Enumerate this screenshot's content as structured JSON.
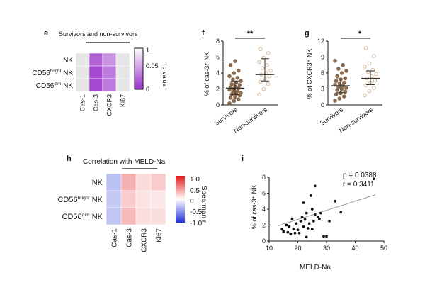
{
  "panel_labels": {
    "e": "e",
    "f": "f",
    "g": "g",
    "h": "h",
    "i": "i"
  },
  "chart_data": [
    {
      "id": "e",
      "type": "heatmap",
      "title": "Survivors and non-survivors",
      "rows": [
        "NK",
        "CD56bright NK",
        "CD56dim NK"
      ],
      "row_labels": [
        {
          "base": "NK",
          "sup": "",
          "tail": ""
        },
        {
          "base": "CD56",
          "sup": "bright",
          "tail": " NK"
        },
        {
          "base": "CD56",
          "sup": "dim",
          "tail": " NK"
        }
      ],
      "columns": [
        "Cas-1",
        "Cas-3",
        "CXCR3",
        "Ki67"
      ],
      "values": [
        [
          1.0,
          0.02,
          0.04,
          1.0
        ],
        [
          1.0,
          0.01,
          0.03,
          1.0
        ],
        [
          1.0,
          0.01,
          0.03,
          1.0
        ]
      ],
      "colorbar": {
        "label": "p value",
        "ticks": [
          "1",
          "0.05",
          "0"
        ],
        "range": [
          0,
          1
        ],
        "low_color": "#9a2fc8",
        "high_color": "#ffffff"
      },
      "significance_bracket": "Cas-1 to CXCR3"
    },
    {
      "id": "f",
      "type": "scatter",
      "ylabel": "% of cas-3⁺ NK",
      "categories": [
        "Survivors",
        "Non-survivors"
      ],
      "ylim": [
        0,
        8
      ],
      "yticks": [
        "0",
        "2",
        "4",
        "6",
        "8"
      ],
      "significance": "**",
      "series": [
        {
          "name": "Survivors",
          "values": [
            0.2,
            0.5,
            0.7,
            0.9,
            1.0,
            1.2,
            1.3,
            1.4,
            1.5,
            1.6,
            1.7,
            1.9,
            2.0,
            2.1,
            2.2,
            2.3,
            2.5,
            2.6,
            2.8,
            3.0,
            3.2,
            3.4,
            3.6,
            4.0,
            4.3,
            5.0,
            5.5
          ],
          "median": 2.1,
          "iqr": [
            1.3,
            3.0
          ],
          "color": "#8b6a4e"
        },
        {
          "name": "Non-survivors",
          "values": [
            1.3,
            2.0,
            2.6,
            2.9,
            3.3,
            3.6,
            3.8,
            4.0,
            4.3,
            4.6,
            5.0,
            5.4,
            5.9,
            6.5,
            7.0
          ],
          "median": 3.8,
          "iqr": [
            3.0,
            5.8
          ],
          "color": "#d9b99a"
        }
      ]
    },
    {
      "id": "g",
      "type": "scatter",
      "ylabel": "% of CXCR3⁺ NK",
      "categories": [
        "Survivors",
        "Non-survivors"
      ],
      "ylim": [
        0,
        12
      ],
      "yticks": [
        "0",
        "3",
        "6",
        "9",
        "12"
      ],
      "significance": "*",
      "series": [
        {
          "name": "Survivors",
          "values": [
            0.8,
            1.2,
            1.6,
            2.0,
            2.2,
            2.5,
            2.8,
            3.0,
            3.2,
            3.4,
            3.6,
            3.8,
            4.0,
            4.2,
            4.5,
            4.8,
            5.0,
            5.4,
            6.0,
            6.4,
            6.8,
            7.5,
            8.3
          ],
          "median": 3.6,
          "iqr": [
            2.3,
            4.9
          ],
          "color": "#8b6a4e"
        },
        {
          "name": "Non-survivors",
          "values": [
            1.8,
            2.6,
            3.2,
            3.7,
            4.2,
            4.6,
            5.0,
            5.4,
            5.8,
            6.2,
            6.6,
            7.2,
            7.8,
            9.2,
            10.7
          ],
          "median": 5.0,
          "iqr": [
            3.8,
            6.4
          ],
          "color": "#d9b99a"
        }
      ]
    },
    {
      "id": "h",
      "type": "heatmap",
      "title": "Correlation with MELD-Na",
      "rows": [
        "NK",
        "CD56bright NK",
        "CD56dim NK"
      ],
      "row_labels": [
        {
          "base": "NK",
          "sup": "",
          "tail": ""
        },
        {
          "base": "CD56",
          "sup": "bright",
          "tail": " NK"
        },
        {
          "base": "CD56",
          "sup": "dim",
          "tail": " NK"
        }
      ],
      "columns": [
        "Cas-1",
        "Cas-3",
        "CXCR3",
        "Ki67"
      ],
      "values": [
        [
          -0.3,
          0.34,
          0.16,
          0.22
        ],
        [
          -0.26,
          0.22,
          0.12,
          0.1
        ],
        [
          -0.28,
          0.3,
          0.14,
          0.14
        ]
      ],
      "colorbar": {
        "label": "Spearman r",
        "ticks": [
          "1.0",
          "0.5",
          "0",
          "-0.5",
          "-1.0"
        ],
        "range": [
          -1,
          1
        ],
        "low_color": "#1f2fd6",
        "high_color": "#e01818"
      },
      "significance_bracket": "Cas-3 to Ki67"
    },
    {
      "id": "i",
      "type": "scatter",
      "xlabel": "MELD-Na",
      "ylabel": "% of cas-3⁺ NK",
      "xlim": [
        10,
        50
      ],
      "ylim": [
        0,
        8
      ],
      "xticks": [
        "10",
        "20",
        "30",
        "40",
        "50"
      ],
      "yticks": [
        "0",
        "2",
        "4",
        "6",
        "8"
      ],
      "annotation_p": "p = 0.0388",
      "annotation_r": "r = 0.3411",
      "points": [
        [
          14.5,
          1.5
        ],
        [
          15,
          1.2
        ],
        [
          16,
          2.0
        ],
        [
          16.5,
          1.1
        ],
        [
          17,
          1.8
        ],
        [
          17.5,
          0.9
        ],
        [
          18,
          2.8
        ],
        [
          18.5,
          1.5
        ],
        [
          19,
          1.0
        ],
        [
          19.5,
          2.2
        ],
        [
          20,
          1.4
        ],
        [
          20.5,
          1.0
        ],
        [
          21,
          2.5
        ],
        [
          21.5,
          3.0
        ],
        [
          22,
          4.8
        ],
        [
          22,
          1.8
        ],
        [
          22.5,
          2.7
        ],
        [
          23,
          0.5
        ],
        [
          23,
          3.5
        ],
        [
          23.5,
          1.6
        ],
        [
          24,
          2.2
        ],
        [
          24.5,
          5.7
        ],
        [
          25,
          4.0
        ],
        [
          25,
          1.5
        ],
        [
          25.5,
          2.5
        ],
        [
          26,
          3.3
        ],
        [
          26,
          6.9
        ],
        [
          27,
          3.0
        ],
        [
          27.5,
          2.8
        ],
        [
          28,
          3.5
        ],
        [
          29,
          0.6
        ],
        [
          30,
          0.6
        ],
        [
          31,
          2.5
        ],
        [
          33,
          5.0
        ],
        [
          35,
          3.6
        ],
        [
          46.5,
          7.8
        ]
      ],
      "trend": {
        "x": [
          13,
          47
        ],
        "y": [
          1.9,
          5.8
        ]
      }
    }
  ]
}
